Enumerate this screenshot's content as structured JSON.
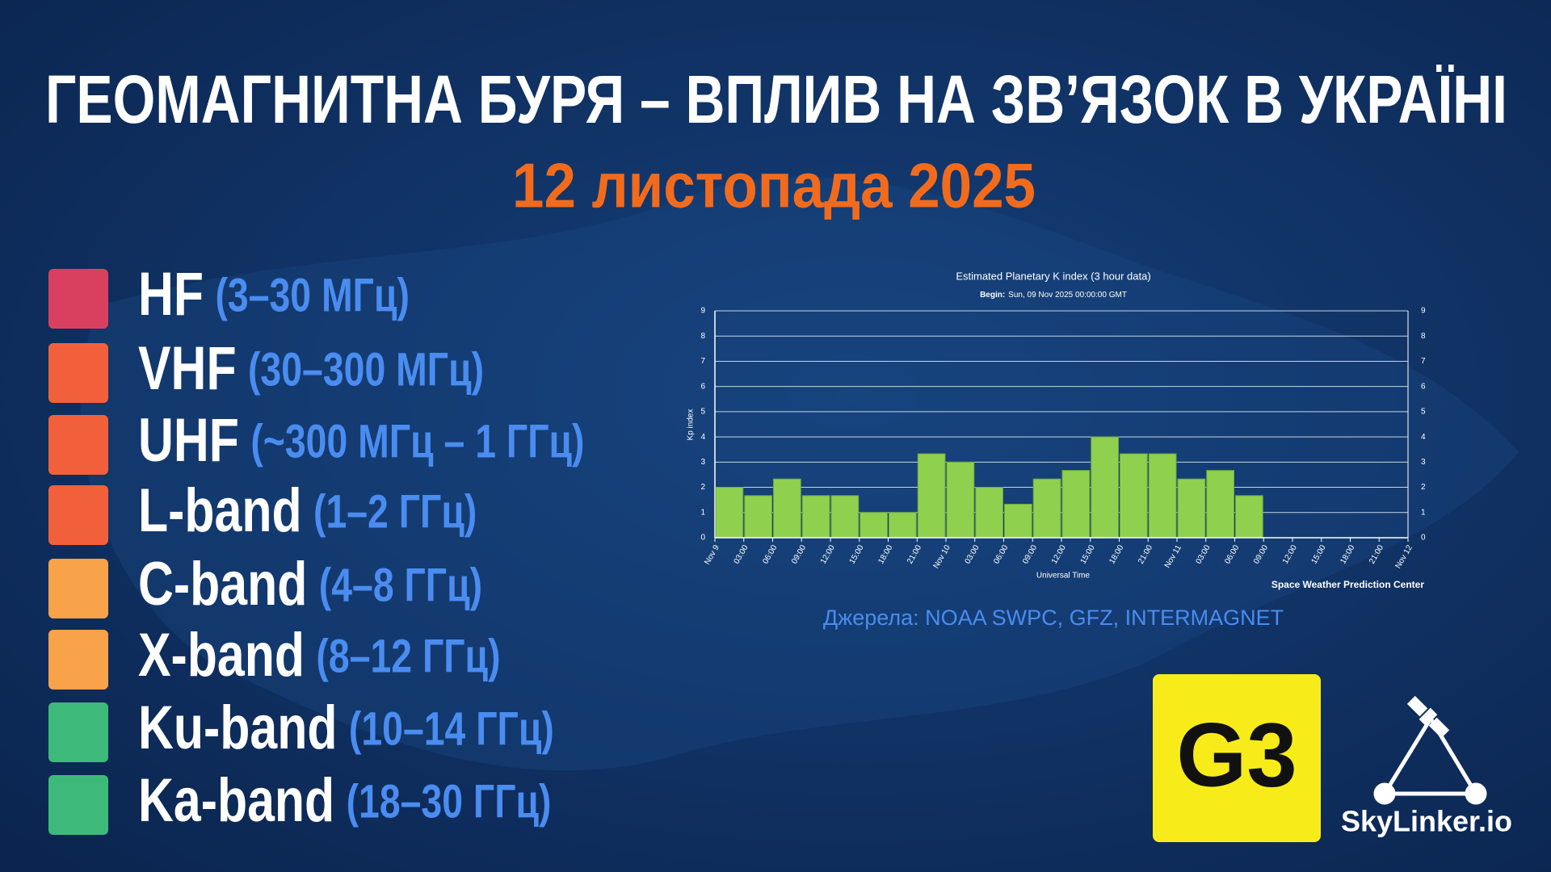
{
  "header": {
    "title": "ГЕОМАГНИТНА БУРЯ – ВПЛИВ НА ЗВ’ЯЗОК В УКРАЇНІ",
    "date": "12 листопада 2025"
  },
  "bands": [
    {
      "name": "HF",
      "range": "(3–30 МГц)",
      "color": "#d9405f"
    },
    {
      "name": "VHF",
      "range": "(30–300 МГц)",
      "color": "#f2603b"
    },
    {
      "name": "UHF",
      "range": "(~300 МГц – 1 ГГц)",
      "color": "#f2603b"
    },
    {
      "name": "L-band",
      "range": "(1–2 ГГц)",
      "color": "#f2603b"
    },
    {
      "name": "C-band",
      "range": "(4–8 ГГц)",
      "color": "#f8a24a"
    },
    {
      "name": "X-band",
      "range": "(8–12 ГГц)",
      "color": "#f8a24a"
    },
    {
      "name": "Ku-band",
      "range": "(10–14 ГГц)",
      "color": "#3dba7a"
    },
    {
      "name": "Ka-band",
      "range": "(18–30 ГГц)",
      "color": "#3dba7a"
    }
  ],
  "chart_data": {
    "type": "bar",
    "title": "Estimated Planetary K index (3 hour data)",
    "subtitle_label": "Begin:",
    "subtitle": "Sun, 09 Nov 2025 00:00:00 GMT",
    "x_label": "Universal Time",
    "y_label": "Kp index",
    "credit": "Space Weather Prediction Center",
    "color": "#8fd14f",
    "x": [
      0,
      3,
      6,
      9,
      12,
      15,
      18,
      21,
      24,
      27,
      30,
      33,
      36,
      39,
      42,
      45,
      48,
      51,
      54
    ],
    "values": [
      2,
      1.67,
      2.33,
      1.67,
      1.67,
      1,
      1,
      3.33,
      3,
      2,
      1.33,
      2.33,
      2.67,
      4,
      3.33,
      3.33,
      2.33,
      2.67,
      1.67
    ],
    "xlim": [
      0,
      72
    ],
    "xticks": [
      {
        "value": 0,
        "label": "Nov 9"
      },
      {
        "value": 3,
        "label": "03:00"
      },
      {
        "value": 6,
        "label": "06:00"
      },
      {
        "value": 9,
        "label": "09:00"
      },
      {
        "value": 12,
        "label": "12:00"
      },
      {
        "value": 15,
        "label": "15:00"
      },
      {
        "value": 18,
        "label": "18:00"
      },
      {
        "value": 21,
        "label": "21:00"
      },
      {
        "value": 24,
        "label": "Nov 10"
      },
      {
        "value": 27,
        "label": "03:00"
      },
      {
        "value": 30,
        "label": "06:00"
      },
      {
        "value": 33,
        "label": "09:00"
      },
      {
        "value": 36,
        "label": "12:00"
      },
      {
        "value": 39,
        "label": "15:00"
      },
      {
        "value": 42,
        "label": "18:00"
      },
      {
        "value": 45,
        "label": "21:00"
      },
      {
        "value": 48,
        "label": "Nov 11"
      },
      {
        "value": 51,
        "label": "03:00"
      },
      {
        "value": 54,
        "label": "06:00"
      },
      {
        "value": 57,
        "label": "09:00"
      },
      {
        "value": 60,
        "label": "12:00"
      },
      {
        "value": 63,
        "label": "15:00"
      },
      {
        "value": 66,
        "label": "18:00"
      },
      {
        "value": 69,
        "label": "21:00"
      },
      {
        "value": 72,
        "label": "Nov 12"
      }
    ],
    "ylim": [
      0,
      9
    ],
    "yticks": [
      0,
      1,
      2,
      3,
      4,
      5,
      6,
      7,
      8,
      9
    ],
    "grid": true
  },
  "source": "Джерела: NOAA SWPC, GFZ, INTERMAGNET",
  "badge": "G3",
  "logo": "SkyLinker.io"
}
